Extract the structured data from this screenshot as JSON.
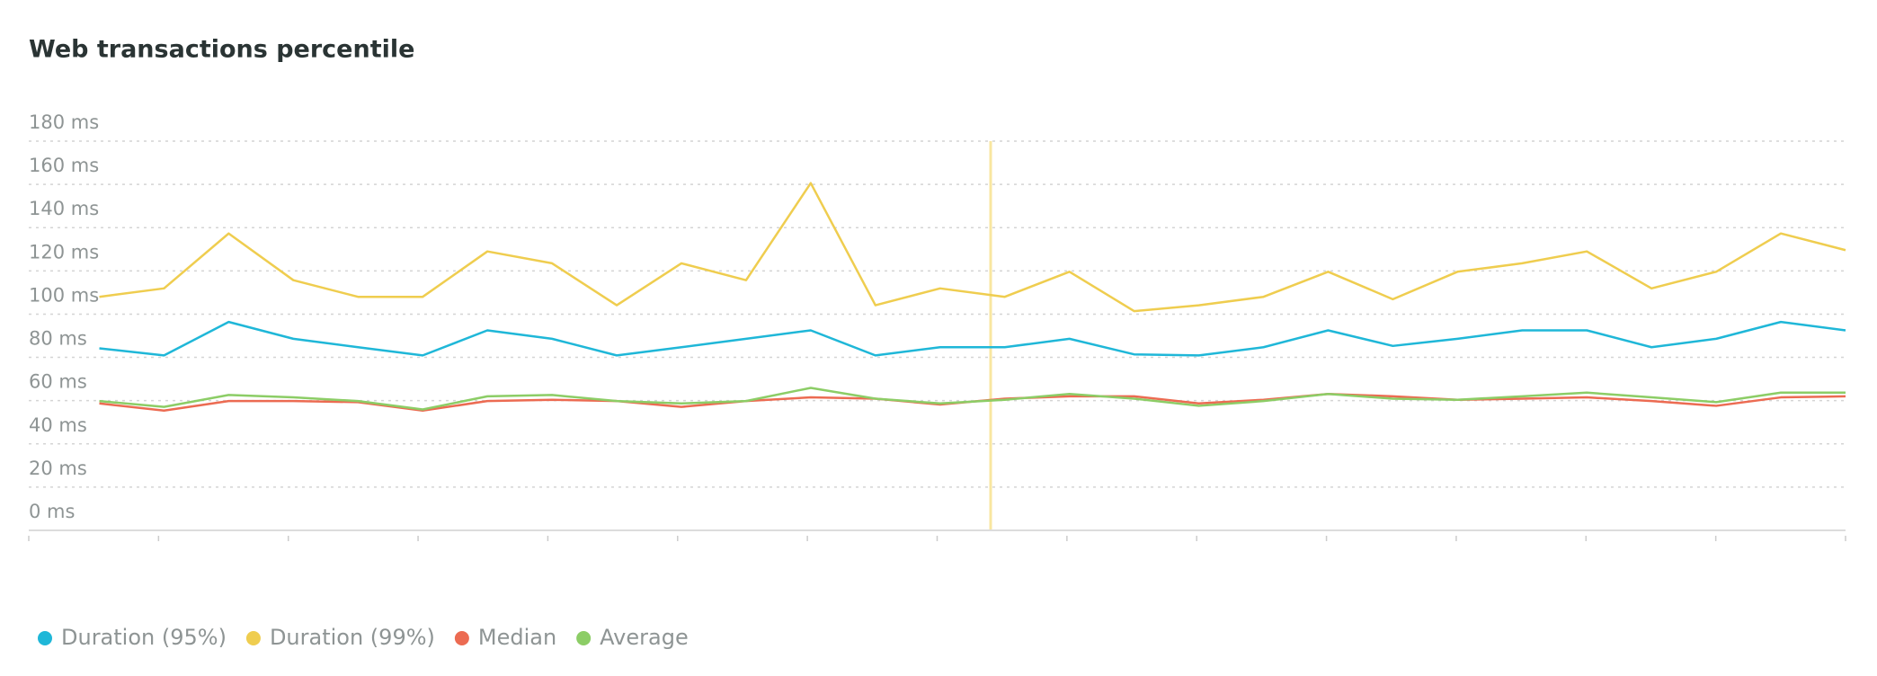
{
  "chart_data": {
    "type": "line",
    "title": "Web transactions percentile",
    "categories": [
      null,
      null,
      null,
      null,
      null,
      null,
      null,
      null,
      null,
      null,
      null,
      null,
      null,
      null,
      null,
      null,
      null,
      null,
      null,
      null,
      null,
      null,
      null,
      null,
      null,
      null,
      null,
      null
    ],
    "series": [
      {
        "name": "Duration (95%)",
        "color": "#1fb7d8",
        "values": [
          84.2,
          80.9,
          96.4,
          88.6,
          84.7,
          80.9,
          92.5,
          88.6,
          80.9,
          84.7,
          88.6,
          92.5,
          80.9,
          84.7,
          84.7,
          88.6,
          81.4,
          80.9,
          84.7,
          92.5,
          85.3,
          88.6,
          92.5,
          92.5,
          84.7,
          88.6,
          96.4,
          92.5
        ]
      },
      {
        "name": "Duration (99%)",
        "color": "#efcd4f",
        "values": [
          108,
          111.9,
          137.3,
          115.7,
          108,
          108,
          129,
          123.5,
          104.1,
          123.5,
          115.7,
          160.6,
          104.1,
          111.9,
          108,
          119.6,
          101.4,
          104.1,
          108,
          119.6,
          106.9,
          119.6,
          123.5,
          129,
          111.9,
          119.6,
          137.3,
          129.6
        ]
      },
      {
        "name": "Median",
        "color": "#ec6b52",
        "values": [
          58.7,
          55.4,
          59.8,
          59.8,
          59.3,
          55.4,
          59.8,
          60.4,
          59.8,
          57.1,
          59.8,
          61.5,
          60.9,
          58.2,
          60.9,
          62,
          62,
          58.7,
          60.4,
          63.1,
          62,
          60.4,
          60.9,
          61.5,
          59.8,
          57.6,
          61.5,
          62
        ]
      },
      {
        "name": "Average",
        "color": "#8ccd66",
        "values": [
          59.8,
          57.1,
          62.6,
          61.5,
          59.8,
          55.9,
          62,
          62.6,
          59.8,
          58.7,
          59.8,
          65.9,
          60.9,
          58.7,
          60.4,
          63.1,
          60.9,
          57.6,
          59.8,
          63.1,
          60.9,
          60.4,
          62,
          63.7,
          61.5,
          59.3,
          63.7,
          63.7
        ]
      }
    ],
    "ylim": [
      0,
      180
    ],
    "yticks": [
      {
        "value": 0,
        "label": "0 ms"
      },
      {
        "value": 20,
        "label": "20 ms"
      },
      {
        "value": 40,
        "label": "40 ms"
      },
      {
        "value": 60,
        "label": "60 ms"
      },
      {
        "value": 80,
        "label": "80 ms"
      },
      {
        "value": 100,
        "label": "100 ms"
      },
      {
        "value": 120,
        "label": "120 ms"
      },
      {
        "value": 140,
        "label": "140 ms"
      },
      {
        "value": 160,
        "label": "160 ms"
      },
      {
        "value": 180,
        "label": "180 ms"
      }
    ],
    "grid": true,
    "legend": "bottom-left"
  }
}
